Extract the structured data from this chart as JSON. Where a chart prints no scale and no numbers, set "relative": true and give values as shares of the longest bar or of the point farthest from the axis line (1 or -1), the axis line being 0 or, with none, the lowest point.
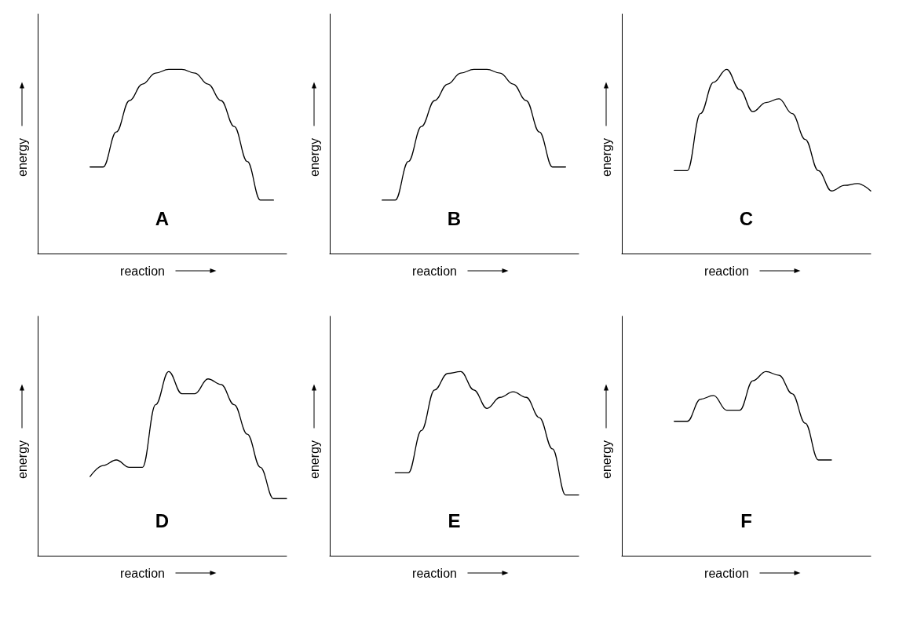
{
  "chart_data": [
    {
      "type": "line",
      "relative": true,
      "marker": "none",
      "xlabel": "reaction",
      "ylabel": "energy",
      "annotations": [
        "A"
      ],
      "categories": [
        null,
        null,
        null,
        null,
        null,
        null,
        null,
        null,
        null,
        null,
        null,
        null,
        null,
        null,
        null,
        null,
        null,
        null,
        null,
        null
      ],
      "series": [
        {
          "color": "#000000",
          "values": [
            null,
            null,
            null,
            null,
            0.47,
            0.47,
            0.66,
            0.83,
            0.92,
            0.98,
            1,
            1,
            0.98,
            0.92,
            0.83,
            0.69,
            0.5,
            0.29,
            0.29,
            null
          ]
        }
      ]
    },
    {
      "type": "line",
      "relative": true,
      "marker": "none",
      "xlabel": "reaction",
      "ylabel": "energy",
      "annotations": [
        "B"
      ],
      "categories": [
        null,
        null,
        null,
        null,
        null,
        null,
        null,
        null,
        null,
        null,
        null,
        null,
        null,
        null,
        null,
        null,
        null,
        null,
        null,
        null
      ],
      "series": [
        {
          "color": "#000000",
          "values": [
            null,
            null,
            null,
            null,
            0.29,
            0.29,
            0.5,
            0.69,
            0.83,
            0.92,
            0.98,
            1,
            1,
            0.98,
            0.92,
            0.83,
            0.66,
            0.47,
            0.47,
            null
          ]
        }
      ]
    },
    {
      "type": "line",
      "relative": true,
      "marker": "none",
      "xlabel": "reaction",
      "ylabel": "energy",
      "annotations": [
        "C"
      ],
      "categories": [
        null,
        null,
        null,
        null,
        null,
        null,
        null,
        null,
        null,
        null,
        null,
        null,
        null,
        null,
        null,
        null,
        null,
        null,
        null,
        null
      ],
      "series": [
        {
          "color": "#000000",
          "values": [
            null,
            null,
            null,
            null,
            0.45,
            0.45,
            0.76,
            0.93,
            1,
            0.89,
            0.77,
            0.82,
            0.84,
            0.76,
            0.62,
            0.45,
            0.34,
            0.37,
            0.38,
            0.34
          ]
        }
      ]
    },
    {
      "type": "line",
      "relative": true,
      "marker": "none",
      "xlabel": "reaction",
      "ylabel": "energy",
      "annotations": [
        "D"
      ],
      "categories": [
        null,
        null,
        null,
        null,
        null,
        null,
        null,
        null,
        null,
        null,
        null,
        null,
        null,
        null,
        null,
        null,
        null,
        null,
        null,
        null
      ],
      "series": [
        {
          "color": "#000000",
          "values": [
            null,
            null,
            null,
            null,
            0.43,
            0.49,
            0.52,
            0.48,
            0.48,
            0.82,
            1,
            0.88,
            0.88,
            0.96,
            0.93,
            0.82,
            0.66,
            0.48,
            0.31,
            0.31
          ]
        }
      ]
    },
    {
      "type": "line",
      "relative": true,
      "marker": "none",
      "xlabel": "reaction",
      "ylabel": "energy",
      "annotations": [
        "E"
      ],
      "categories": [
        null,
        null,
        null,
        null,
        null,
        null,
        null,
        null,
        null,
        null,
        null,
        null,
        null,
        null,
        null,
        null,
        null,
        null,
        null,
        null
      ],
      "series": [
        {
          "color": "#000000",
          "values": [
            null,
            null,
            null,
            null,
            null,
            0.45,
            0.45,
            0.68,
            0.9,
            0.99,
            1,
            0.9,
            0.8,
            0.86,
            0.89,
            0.86,
            0.75,
            0.58,
            0.33,
            0.33
          ]
        }
      ]
    },
    {
      "type": "line",
      "relative": true,
      "marker": "none",
      "xlabel": "reaction",
      "ylabel": "energy",
      "annotations": [
        "F"
      ],
      "categories": [
        null,
        null,
        null,
        null,
        null,
        null,
        null,
        null,
        null,
        null,
        null,
        null,
        null,
        null,
        null,
        null,
        null,
        null,
        null,
        null
      ],
      "series": [
        {
          "color": "#000000",
          "values": [
            null,
            null,
            null,
            null,
            0.73,
            0.73,
            0.85,
            0.87,
            0.79,
            0.79,
            0.95,
            1,
            0.98,
            0.88,
            0.72,
            0.52,
            0.52,
            null,
            null,
            null
          ]
        }
      ]
    }
  ]
}
